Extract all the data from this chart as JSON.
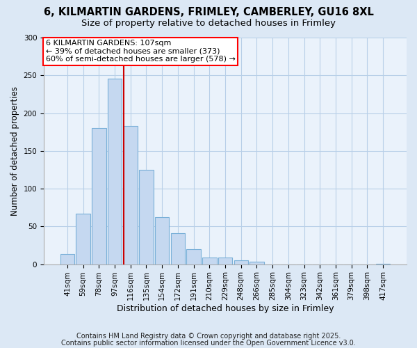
{
  "title_line1": "6, KILMARTIN GARDENS, FRIMLEY, CAMBERLEY, GU16 8XL",
  "title_line2": "Size of property relative to detached houses in Frimley",
  "xlabel": "Distribution of detached houses by size in Frimley",
  "ylabel": "Number of detached properties",
  "bar_labels": [
    "41sqm",
    "59sqm",
    "78sqm",
    "97sqm",
    "116sqm",
    "135sqm",
    "154sqm",
    "172sqm",
    "191sqm",
    "210sqm",
    "229sqm",
    "248sqm",
    "266sqm",
    "285sqm",
    "304sqm",
    "323sqm",
    "342sqm",
    "361sqm",
    "379sqm",
    "398sqm",
    "417sqm"
  ],
  "bar_values": [
    13,
    67,
    180,
    246,
    183,
    125,
    62,
    41,
    20,
    9,
    9,
    5,
    3,
    0,
    0,
    0,
    0,
    0,
    0,
    0,
    1
  ],
  "bar_color": "#c5d8f0",
  "bar_edge_color": "#7ab0d8",
  "vline_x": 3.55,
  "vline_color": "#cc0000",
  "ylim": [
    0,
    300
  ],
  "yticks": [
    0,
    50,
    100,
    150,
    200,
    250,
    300
  ],
  "annotation_title": "6 KILMARTIN GARDENS: 107sqm",
  "annotation_line2": "← 39% of detached houses are smaller (373)",
  "annotation_line3": "60% of semi-detached houses are larger (578) →",
  "footnote1": "Contains HM Land Registry data © Crown copyright and database right 2025.",
  "footnote2": "Contains public sector information licensed under the Open Government Licence v3.0.",
  "bg_color": "#dce8f5",
  "plot_bg_color": "#eaf2fb",
  "grid_color": "#b8cfe8",
  "title_fontsize": 10.5,
  "subtitle_fontsize": 9.5,
  "xlabel_fontsize": 9,
  "ylabel_fontsize": 8.5,
  "tick_fontsize": 7.5,
  "annot_fontsize": 8,
  "footnote_fontsize": 7
}
